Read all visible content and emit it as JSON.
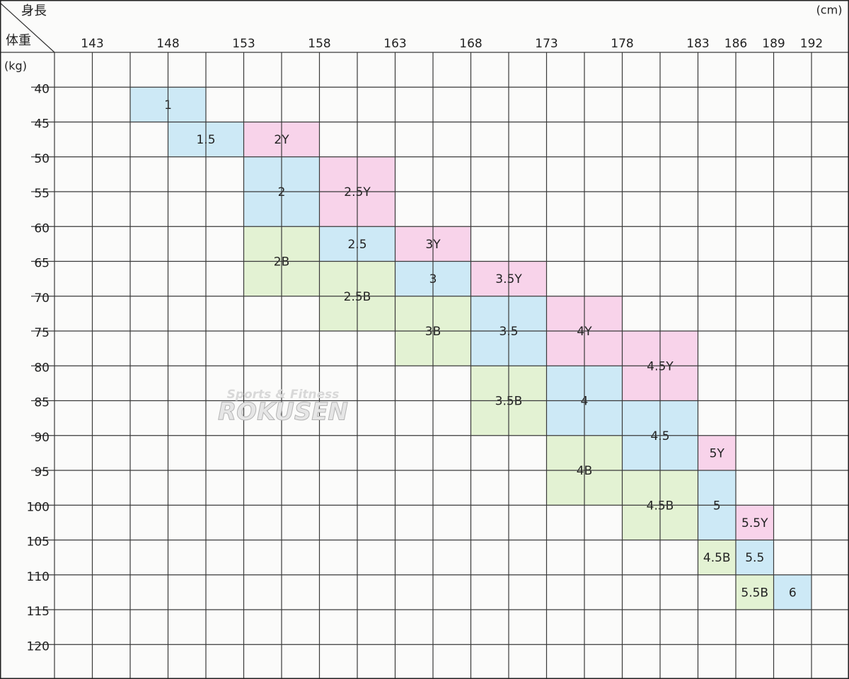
{
  "header": {
    "height_label": "身長",
    "weight_label": "体重",
    "height_unit": "(cm)",
    "weight_unit": "(kg)"
  },
  "heights": [
    "143",
    "148",
    "153",
    "158",
    "163",
    "168",
    "173",
    "178",
    "183",
    "186",
    "189",
    "192"
  ],
  "weights": [
    "40",
    "45",
    "50",
    "55",
    "60",
    "65",
    "70",
    "75",
    "80",
    "85",
    "90",
    "95",
    "100",
    "105",
    "110",
    "115",
    "120"
  ],
  "cells": [
    {
      "label": "1",
      "color": "#cde9f6"
    },
    {
      "label": "1.5",
      "color": "#cde9f6"
    },
    {
      "label": "2Y",
      "color": "#f8d3ea"
    },
    {
      "label": "2",
      "color": "#cde9f6"
    },
    {
      "label": "2.5Y",
      "color": "#f8d3ea"
    },
    {
      "label": "2B",
      "color": "#e3f2d3"
    },
    {
      "label": "2.5",
      "color": "#cde9f6"
    },
    {
      "label": "3Y",
      "color": "#f8d3ea"
    },
    {
      "label": "2.5B",
      "color": "#e3f2d3"
    },
    {
      "label": "3",
      "color": "#cde9f6"
    },
    {
      "label": "3.5Y",
      "color": "#f8d3ea"
    },
    {
      "label": "3B",
      "color": "#e3f2d3"
    },
    {
      "label": "3.5",
      "color": "#cde9f6"
    },
    {
      "label": "4Y",
      "color": "#f8d3ea"
    },
    {
      "label": "3.5B",
      "color": "#e3f2d3"
    },
    {
      "label": "4",
      "color": "#cde9f6"
    },
    {
      "label": "4.5Y",
      "color": "#f8d3ea"
    },
    {
      "label": "4.5",
      "color": "#cde9f6"
    },
    {
      "label": "4B",
      "color": "#e3f2d3"
    },
    {
      "label": "5Y",
      "color": "#f8d3ea"
    },
    {
      "label": "4.5B",
      "color": "#e3f2d3"
    },
    {
      "label": "5",
      "color": "#cde9f6"
    },
    {
      "label": "5.5Y",
      "color": "#f8d3ea"
    },
    {
      "label": "4.5B",
      "color": "#e3f2d3"
    },
    {
      "label": "5.5",
      "color": "#cde9f6"
    },
    {
      "label": "5.5B",
      "color": "#e3f2d3"
    },
    {
      "label": "6",
      "color": "#cde9f6"
    }
  ],
  "watermark": {
    "line1": "Sports & Fitness",
    "line2": "ROKUSEN"
  }
}
